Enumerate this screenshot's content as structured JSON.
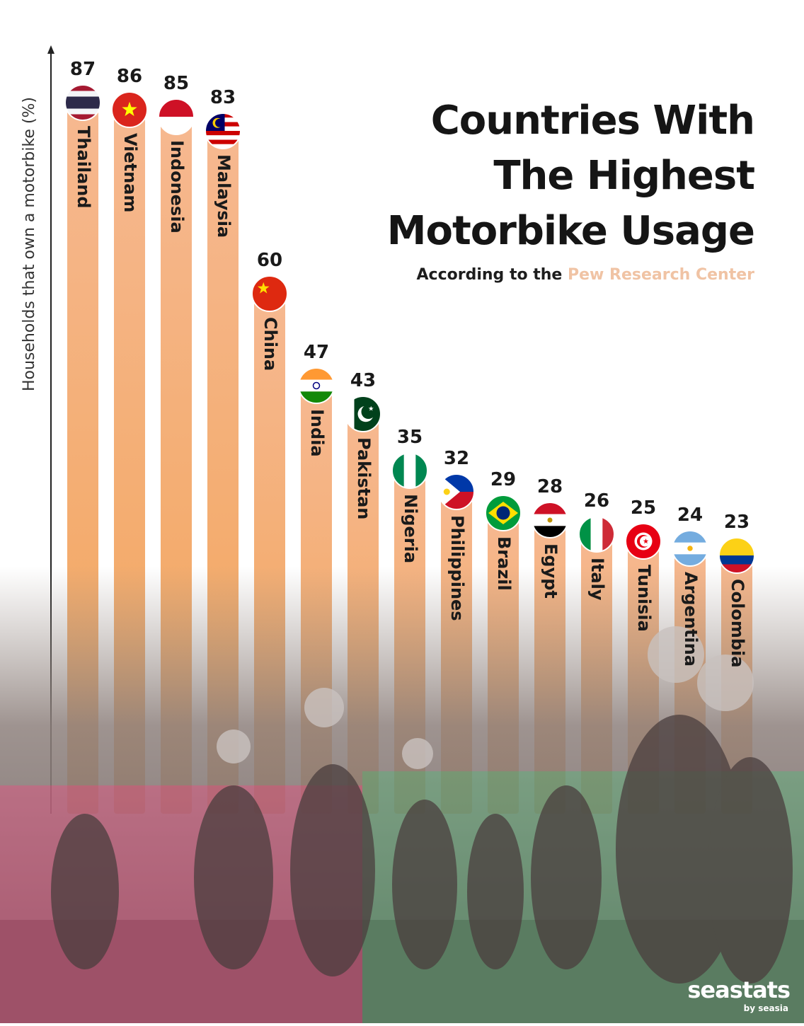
{
  "header": {
    "title_lines": [
      "Countries With",
      "The Highest",
      "Motorbike Usage"
    ],
    "subtitle_prefix": "According to the",
    "subtitle_source": "Pew Research Center"
  },
  "brand": {
    "name": "seastats",
    "sub": "by seasia"
  },
  "colors": {
    "bar_top": "#f6b890",
    "bar_bottom": "#f2a55a",
    "text": "#1a1a1a",
    "road": "#7d6e6c",
    "accent_pink": "#ff3d7f",
    "accent_green": "#2ecc71"
  },
  "chart_data": {
    "type": "bar",
    "ylabel": "Households that own a motorbike (%)",
    "categories": [
      "Thailand",
      "Vietnam",
      "Indonesia",
      "Malaysia",
      "China",
      "India",
      "Pakistan",
      "Nigeria",
      "Philippines",
      "Brazil",
      "Egypt",
      "Italy",
      "Tunisia",
      "Argentina",
      "Colombia"
    ],
    "values": [
      87,
      86,
      85,
      83,
      60,
      47,
      43,
      35,
      32,
      29,
      28,
      26,
      25,
      24,
      23
    ],
    "icons": [
      "thailand-flag-icon",
      "vietnam-flag-icon",
      "indonesia-flag-icon",
      "malaysia-flag-icon",
      "china-flag-icon",
      "india-flag-icon",
      "pakistan-flag-icon",
      "nigeria-flag-icon",
      "philippines-flag-icon",
      "brazil-flag-icon",
      "egypt-flag-icon",
      "italy-flag-icon",
      "tunisia-flag-icon",
      "argentina-flag-icon",
      "colombia-flag-icon"
    ],
    "ylim": [
      0,
      100
    ],
    "grid": false,
    "legend": "none",
    "orientation": "vertical"
  }
}
